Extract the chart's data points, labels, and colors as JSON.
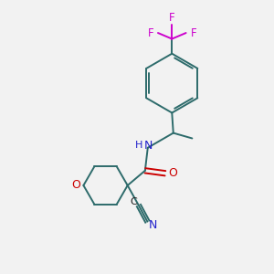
{
  "background_color": "#f2f2f2",
  "bond_color": "#2d6b6b",
  "oxygen_color": "#cc0000",
  "nitrogen_color": "#2222cc",
  "fluorine_color": "#cc00cc",
  "carbon_color": "#1a1a1a",
  "line_width": 1.4,
  "figsize": [
    3.0,
    3.0
  ],
  "dpi": 100,
  "xlim": [
    0,
    10
  ],
  "ylim": [
    0,
    10
  ]
}
